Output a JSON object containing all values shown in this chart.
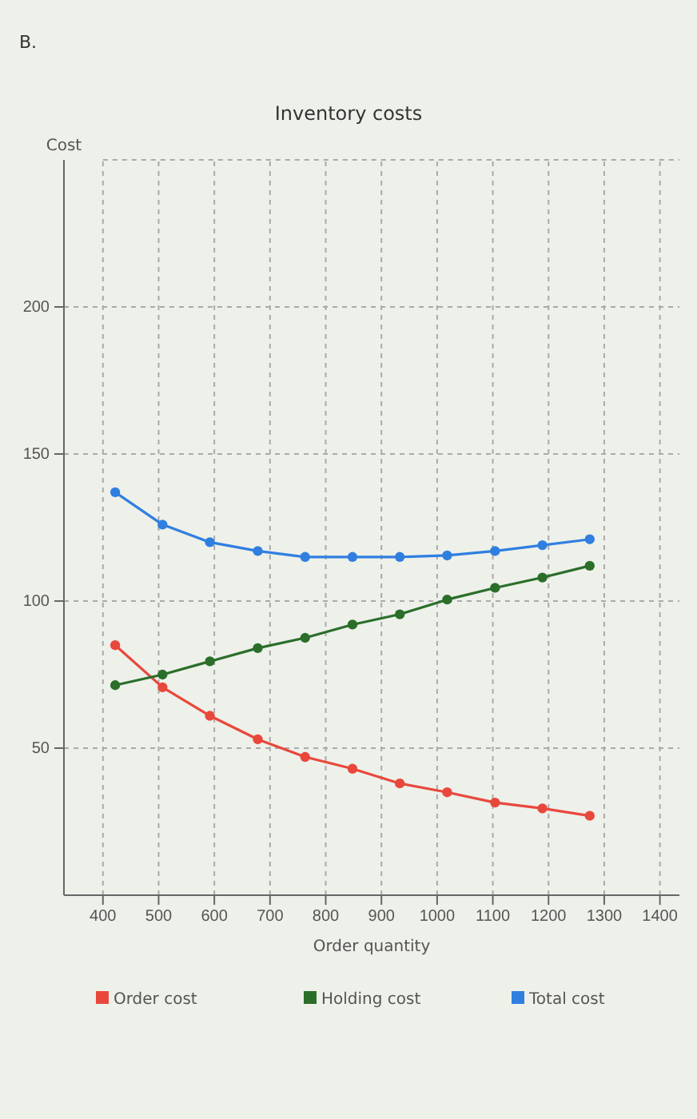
{
  "chart_data": {
    "type": "line",
    "title": "Inventory costs",
    "xlabel": "Order quantity",
    "ylabel": "Cost",
    "annotations": [
      "B."
    ],
    "x": [
      422,
      507,
      592,
      678,
      763,
      848,
      933,
      1018,
      1104,
      1189,
      1274
    ],
    "series": [
      {
        "name": "Order cost",
        "color": "#e8483c",
        "values": [
          85,
          70.7,
          61,
          53,
          47,
          43,
          38,
          35,
          31.5,
          29.5,
          27
        ]
      },
      {
        "name": "Holding cost",
        "color": "#2a6e2a",
        "values": [
          71.4,
          75,
          79.5,
          84,
          87.5,
          92,
          95.5,
          100.5,
          104.5,
          108,
          112
        ]
      },
      {
        "name": "Total cost",
        "color": "#2f7fe0",
        "values": [
          137,
          126,
          120,
          117,
          115,
          115,
          115,
          115.5,
          117,
          119,
          121
        ]
      }
    ],
    "xlim": [
      330,
      1435
    ],
    "ylim": [
      0,
      250
    ],
    "xticks": [
      400,
      500,
      600,
      700,
      800,
      900,
      1000,
      1100,
      1200,
      1300,
      1400
    ],
    "yticks": [
      50,
      100,
      150,
      200
    ],
    "grid": true,
    "legend": "bottom",
    "marker": "circle",
    "line_style": "solid"
  }
}
